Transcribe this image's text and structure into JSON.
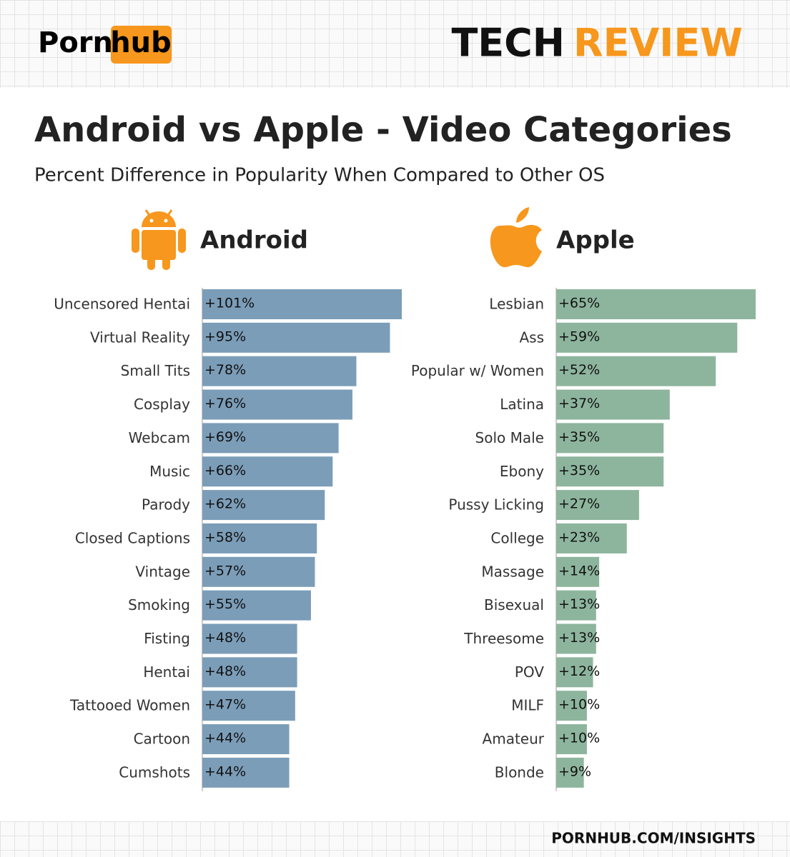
{
  "header": {
    "logo_left": "Porn",
    "logo_right": "hub",
    "brand_1": "TECH",
    "brand_2": "REVIEW"
  },
  "title": "Android vs Apple - Video Categories",
  "subtitle": "Percent Difference in Popularity When Compared to Other OS",
  "chart_data": [
    {
      "type": "bar",
      "name": "Android",
      "orientation": "horizontal",
      "color": "#7b9db8",
      "categories": [
        "Uncensored Hentai",
        "Virtual Reality",
        "Small Tits",
        "Cosplay",
        "Webcam",
        "Music",
        "Parody",
        "Closed Captions",
        "Vintage",
        "Smoking",
        "Fisting",
        "Hentai",
        "Tattooed Women",
        "Cartoon",
        "Cumshots"
      ],
      "values": [
        101,
        95,
        78,
        76,
        69,
        66,
        62,
        58,
        57,
        55,
        48,
        48,
        47,
        44,
        44
      ],
      "value_labels": [
        "+101%",
        "+95%",
        "+78%",
        "+76%",
        "+69%",
        "+66%",
        "+62%",
        "+58%",
        "+57%",
        "+55%",
        "+48%",
        "+48%",
        "+47%",
        "+44%",
        "+44%"
      ]
    },
    {
      "type": "bar",
      "name": "Apple",
      "orientation": "horizontal",
      "color": "#8db59d",
      "categories": [
        "Lesbian",
        "Ass",
        "Popular w/ Women",
        "Latina",
        "Solo Male",
        "Ebony",
        "Pussy Licking",
        "College",
        "Massage",
        "Bisexual",
        "Threesome",
        "POV",
        "MILF",
        "Amateur",
        "Blonde"
      ],
      "values": [
        65,
        59,
        52,
        37,
        35,
        35,
        27,
        23,
        14,
        13,
        13,
        12,
        10,
        10,
        9
      ],
      "value_labels": [
        "+65%",
        "+59%",
        "+52%",
        "+37%",
        "+35%",
        "+35%",
        "+27%",
        "+23%",
        "+14%",
        "+13%",
        "+13%",
        "+12%",
        "+10%",
        "+10%",
        "+9%"
      ]
    }
  ],
  "footer": "PORNHUB.COM/INSIGHTS"
}
